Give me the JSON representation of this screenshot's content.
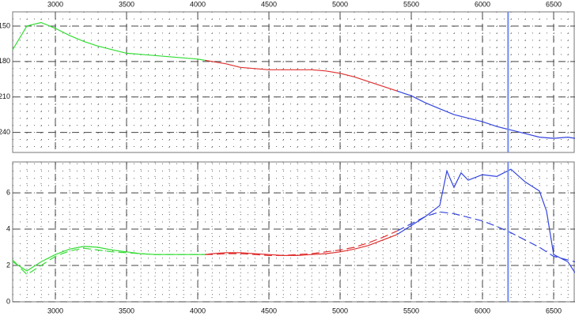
{
  "chart_data": [
    {
      "type": "line",
      "xlim": [
        2700,
        6650
      ],
      "ylim": [
        257,
        138
      ],
      "xticks": [
        3000,
        3500,
        4000,
        4500,
        5000,
        5500,
        6000,
        6500
      ],
      "yticks": [
        150,
        180,
        210,
        240
      ],
      "xtick_position": "top",
      "grid": true,
      "cursor": 6180,
      "cursor_color": "#6f8cf5",
      "series": [
        {
          "color": "#33dd33",
          "dashed": false,
          "x": [
            2700,
            2800,
            2900,
            3000,
            3100,
            3200,
            3300,
            3400,
            3500,
            3600,
            3700,
            3800,
            3900,
            4000,
            4050
          ],
          "values": [
            170,
            150,
            147,
            152,
            158,
            163,
            167,
            170,
            173,
            174,
            175,
            176,
            177,
            178,
            179
          ]
        },
        {
          "color": "#e03030",
          "dashed": false,
          "x": [
            4050,
            4100,
            4200,
            4300,
            4400,
            4500,
            4600,
            4700,
            4800,
            4900,
            5000,
            5100,
            5200,
            5300,
            5400
          ],
          "values": [
            179,
            180,
            182,
            185,
            186,
            187,
            187,
            187,
            187,
            188,
            190,
            193,
            197,
            201,
            205
          ]
        },
        {
          "color": "#3344dd",
          "dashed": false,
          "x": [
            5400,
            5500,
            5600,
            5700,
            5800,
            5900,
            6000,
            6100,
            6200,
            6300,
            6400,
            6500,
            6600,
            6650
          ],
          "values": [
            205,
            209,
            215,
            220,
            225,
            228,
            231,
            235,
            238,
            241,
            244,
            245,
            244,
            245
          ]
        }
      ]
    },
    {
      "type": "line",
      "xlim": [
        2700,
        6650
      ],
      "ylim": [
        0,
        7.7
      ],
      "xticks": [
        3000,
        3500,
        4000,
        4500,
        5000,
        5500,
        6000,
        6500
      ],
      "yticks": [
        0,
        2,
        4,
        6
      ],
      "xtick_position": "bottom",
      "grid": true,
      "cursor": 6180,
      "cursor_color": "#6f8cf5",
      "series": [
        {
          "color": "#33dd33",
          "dashed": false,
          "x": [
            2700,
            2800,
            2900,
            3000,
            3100,
            3200,
            3300,
            3400,
            3500,
            3600,
            3700,
            3800,
            3900,
            4000,
            4050
          ],
          "values": [
            2.2,
            1.7,
            2.2,
            2.6,
            2.9,
            3.05,
            3.0,
            2.85,
            2.75,
            2.65,
            2.6,
            2.6,
            2.6,
            2.6,
            2.6
          ]
        },
        {
          "color": "#e03030",
          "dashed": false,
          "x": [
            4050,
            4100,
            4200,
            4300,
            4400,
            4500,
            4600,
            4700,
            4800,
            4900,
            5000,
            5100,
            5200,
            5300,
            5400
          ],
          "values": [
            2.6,
            2.65,
            2.7,
            2.7,
            2.65,
            2.6,
            2.55,
            2.55,
            2.6,
            2.65,
            2.75,
            2.9,
            3.1,
            3.4,
            3.7
          ]
        },
        {
          "color": "#3344dd",
          "dashed": false,
          "x": [
            5400,
            5500,
            5600,
            5700,
            5750,
            5800,
            5850,
            5900,
            6000,
            6100,
            6200,
            6300,
            6400,
            6450,
            6500,
            6600,
            6650
          ],
          "values": [
            3.7,
            4.2,
            4.7,
            5.3,
            7.2,
            6.3,
            7.1,
            6.7,
            7.0,
            6.9,
            7.3,
            6.6,
            6.1,
            5.0,
            2.6,
            2.2,
            1.6
          ]
        },
        {
          "color": "#33dd33",
          "dashed": true,
          "x": [
            2700,
            2800,
            2900,
            3000,
            3100,
            3200,
            3300,
            3400,
            3500,
            3600,
            3700,
            3800,
            3900,
            4000,
            4050
          ],
          "values": [
            2.3,
            1.5,
            2.0,
            2.5,
            2.8,
            2.95,
            2.85,
            2.75,
            2.7,
            2.65,
            2.6,
            2.6,
            2.6,
            2.6,
            2.6
          ]
        },
        {
          "color": "#e03030",
          "dashed": true,
          "x": [
            4050,
            4100,
            4200,
            4300,
            4400,
            4500,
            4600,
            4700,
            4800,
            4900,
            5000,
            5100,
            5200,
            5300,
            5400
          ],
          "values": [
            2.6,
            2.6,
            2.65,
            2.65,
            2.6,
            2.55,
            2.55,
            2.6,
            2.65,
            2.75,
            2.85,
            3.0,
            3.25,
            3.55,
            3.9
          ]
        },
        {
          "color": "#3344dd",
          "dashed": true,
          "x": [
            5400,
            5500,
            5600,
            5700,
            5800,
            5900,
            6000,
            6100,
            6200,
            6300,
            6400,
            6500,
            6600,
            6650
          ],
          "values": [
            3.9,
            4.3,
            4.7,
            4.95,
            4.85,
            4.65,
            4.45,
            4.15,
            3.8,
            3.4,
            3.0,
            2.5,
            2.3,
            2.2
          ]
        }
      ]
    }
  ]
}
